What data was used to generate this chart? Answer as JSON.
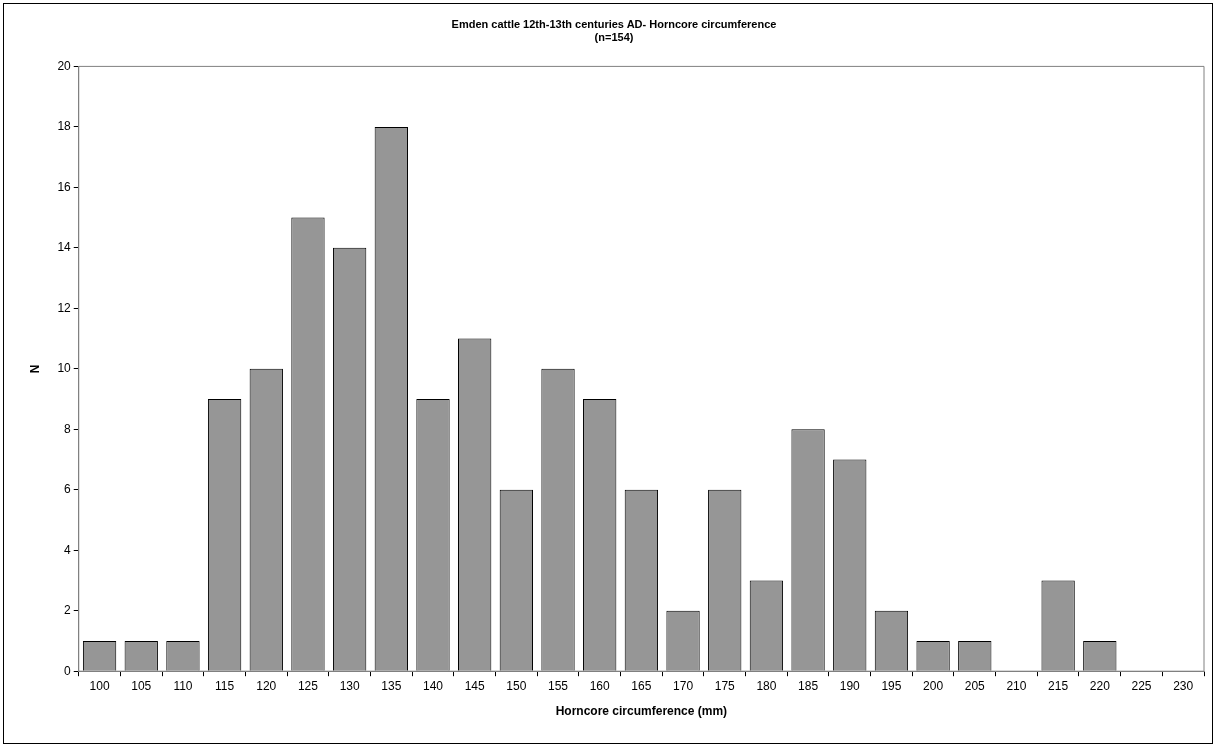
{
  "chart_data": {
    "type": "bar",
    "title": "Emden cattle 12th-13th centuries AD- Horncore circumference",
    "subtitle": "(n=154)",
    "xlabel": "Horncore circumference (mm)",
    "ylabel": "N",
    "categories": [
      "100",
      "105",
      "110",
      "115",
      "120",
      "125",
      "130",
      "135",
      "140",
      "145",
      "150",
      "155",
      "160",
      "165",
      "170",
      "175",
      "180",
      "185",
      "190",
      "195",
      "200",
      "205",
      "210",
      "215",
      "220",
      "225",
      "230"
    ],
    "values": [
      1,
      1,
      1,
      9,
      10,
      15,
      14,
      18,
      9,
      11,
      6,
      10,
      9,
      6,
      2,
      6,
      3,
      8,
      7,
      2,
      1,
      1,
      0,
      3,
      1,
      0,
      0
    ],
    "color": "#969696",
    "ylim": [
      0,
      20
    ],
    "yticks": [
      0,
      2,
      4,
      6,
      8,
      10,
      12,
      14,
      16,
      18,
      20
    ],
    "grid": false,
    "legend": false
  }
}
